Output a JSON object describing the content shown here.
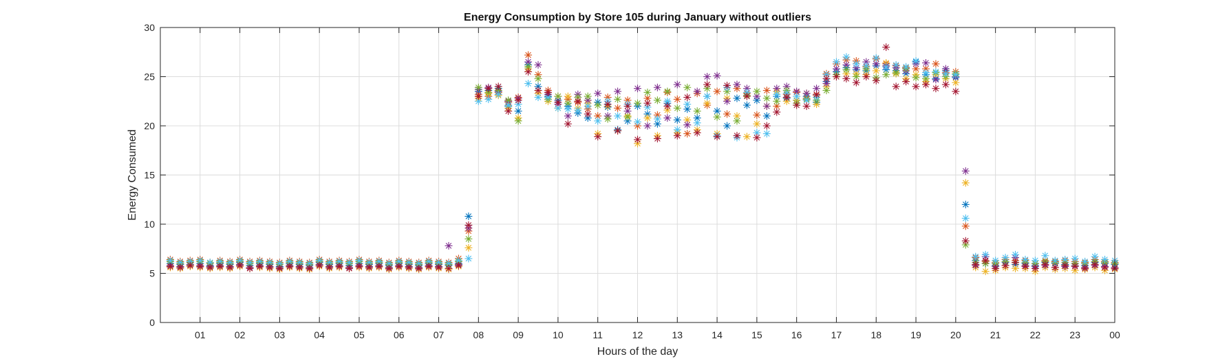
{
  "chart_data": {
    "type": "scatter",
    "title": "Energy Consumption by Store 105 during January without outliers",
    "xlabel": "Hours of the day",
    "ylabel": "Energy Consumed",
    "xlim": [
      0,
      96
    ],
    "ylim": [
      0,
      30
    ],
    "xticks": [
      {
        "value": 4,
        "label": "01"
      },
      {
        "value": 8,
        "label": "02"
      },
      {
        "value": 12,
        "label": "03"
      },
      {
        "value": 16,
        "label": "04"
      },
      {
        "value": 20,
        "label": "05"
      },
      {
        "value": 24,
        "label": "06"
      },
      {
        "value": 28,
        "label": "07"
      },
      {
        "value": 32,
        "label": "08"
      },
      {
        "value": 36,
        "label": "09"
      },
      {
        "value": 40,
        "label": "10"
      },
      {
        "value": 44,
        "label": "11"
      },
      {
        "value": 48,
        "label": "12"
      },
      {
        "value": 52,
        "label": "13"
      },
      {
        "value": 56,
        "label": "14"
      },
      {
        "value": 60,
        "label": "15"
      },
      {
        "value": 64,
        "label": "16"
      },
      {
        "value": 68,
        "label": "17"
      },
      {
        "value": 72,
        "label": "18"
      },
      {
        "value": 76,
        "label": "19"
      },
      {
        "value": 80,
        "label": "20"
      },
      {
        "value": 84,
        "label": "21"
      },
      {
        "value": 88,
        "label": "22"
      },
      {
        "value": 92,
        "label": "23"
      },
      {
        "value": 96,
        "label": "00"
      }
    ],
    "yticks": [
      {
        "value": 0,
        "label": "0"
      },
      {
        "value": 5,
        "label": "5"
      },
      {
        "value": 10,
        "label": "10"
      },
      {
        "value": 15,
        "label": "15"
      },
      {
        "value": 20,
        "label": "20"
      },
      {
        "value": 25,
        "label": "25"
      },
      {
        "value": 30,
        "label": "30"
      }
    ],
    "grid": true,
    "marker": "asterisk",
    "series_colors": [
      "#0072BD",
      "#D95319",
      "#EDB120",
      "#7E2F8E",
      "#77AC30",
      "#4DBEEE",
      "#A2142F"
    ],
    "x": [
      1,
      2,
      3,
      4,
      5,
      6,
      7,
      8,
      9,
      10,
      11,
      12,
      13,
      14,
      15,
      16,
      17,
      18,
      19,
      20,
      21,
      22,
      23,
      24,
      25,
      26,
      27,
      28,
      29,
      30,
      31,
      32,
      33,
      34,
      35,
      36,
      37,
      38,
      39,
      40,
      41,
      42,
      43,
      44,
      45,
      46,
      47,
      48,
      49,
      50,
      51,
      52,
      53,
      54,
      55,
      56,
      57,
      58,
      59,
      60,
      61,
      62,
      63,
      64,
      65,
      66,
      67,
      68,
      69,
      70,
      71,
      72,
      73,
      74,
      75,
      76,
      77,
      78,
      79,
      80,
      81,
      82,
      83,
      84,
      85,
      86,
      87,
      88,
      89,
      90,
      91,
      92,
      93,
      94,
      95,
      96
    ],
    "series": [
      {
        "values": [
          6.0,
          5.9,
          6.1,
          6.0,
          5.8,
          6.0,
          5.9,
          6.1,
          5.8,
          6.0,
          5.9,
          5.7,
          6.0,
          5.9,
          5.8,
          6.1,
          5.9,
          6.0,
          5.8,
          6.0,
          5.9,
          6.0,
          5.8,
          6.0,
          5.9,
          5.8,
          6.0,
          5.9,
          5.8,
          6.0,
          10.8,
          23.5,
          23.6,
          23.8,
          22.0,
          21.5,
          26.2,
          24.0,
          23.0,
          22.6,
          22.0,
          21.3,
          20.8,
          22.4,
          21.9,
          19.6,
          20.5,
          22.0,
          21.2,
          20.2,
          22.3,
          20.6,
          21.7,
          20.8,
          23.0,
          21.5,
          20.0,
          22.8,
          22.1,
          22.6,
          21.0,
          23.0,
          22.8,
          22.6,
          23.0,
          22.4,
          24.5,
          25.5,
          25.9,
          25.7,
          25.6,
          26.1,
          25.7,
          25.6,
          25.3,
          26.5,
          25.2,
          24.8,
          25.6,
          24.9,
          12.0,
          6.3,
          6.0,
          5.8,
          6.1,
          5.9,
          6.0,
          5.8,
          6.1,
          6.0,
          5.9,
          6.0,
          5.8,
          6.1,
          6.0,
          5.9
        ]
      },
      {
        "values": [
          6.4,
          6.2,
          6.3,
          6.4,
          6.1,
          6.3,
          6.2,
          6.4,
          6.2,
          6.3,
          6.2,
          6.1,
          6.3,
          6.2,
          6.1,
          6.4,
          6.2,
          6.3,
          6.2,
          6.4,
          6.2,
          6.3,
          6.1,
          6.3,
          6.2,
          6.1,
          6.3,
          6.2,
          6.1,
          6.5,
          9.3,
          23.2,
          23.0,
          23.4,
          22.4,
          22.9,
          27.2,
          25.2,
          23.6,
          23.0,
          22.7,
          22.4,
          21.7,
          21.0,
          22.9,
          21.8,
          22.6,
          20.0,
          22.8,
          21.1,
          23.4,
          22.7,
          19.2,
          23.3,
          22.1,
          23.5,
          21.2,
          23.8,
          23.3,
          21.1,
          23.6,
          22.0,
          23.2,
          23.4,
          22.8,
          23.1,
          25.3,
          26.3,
          26.7,
          26.6,
          26.0,
          26.8,
          26.3,
          26.1,
          25.9,
          25.8,
          25.8,
          26.3,
          25.4,
          25.5,
          9.8,
          6.6,
          6.2,
          6.1,
          6.4,
          6.3,
          6.3,
          6.0,
          6.3,
          6.2,
          6.3,
          6.2,
          6.1,
          6.4,
          6.2,
          6.1
        ]
      },
      {
        "values": [
          5.6,
          5.5,
          5.7,
          5.6,
          5.5,
          5.6,
          5.5,
          5.7,
          5.5,
          5.6,
          5.5,
          5.4,
          5.6,
          5.5,
          5.4,
          5.7,
          5.5,
          5.6,
          5.5,
          5.6,
          5.5,
          5.6,
          5.4,
          5.6,
          5.5,
          5.4,
          5.6,
          5.5,
          5.4,
          5.7,
          7.6,
          22.8,
          23.3,
          23.1,
          21.8,
          20.8,
          25.8,
          23.3,
          22.5,
          21.8,
          23.0,
          21.8,
          22.3,
          19.2,
          22.0,
          19.5,
          21.0,
          18.2,
          20.8,
          19.0,
          21.6,
          19.3,
          20.6,
          19.6,
          22.3,
          19.2,
          22.8,
          21.0,
          18.9,
          20.2,
          22.0,
          23.5,
          22.5,
          22.6,
          23.3,
          22.2,
          24.0,
          25.0,
          25.3,
          25.3,
          25.2,
          25.6,
          26.4,
          25.3,
          24.8,
          25.2,
          24.5,
          25.2,
          24.8,
          24.4,
          14.2,
          5.6,
          5.2,
          5.3,
          5.6,
          5.5,
          5.5,
          5.2,
          5.6,
          5.4,
          5.5,
          5.3,
          5.4,
          5.6,
          5.3,
          5.4
        ]
      },
      {
        "values": [
          5.8,
          5.7,
          5.9,
          5.8,
          5.7,
          5.8,
          5.7,
          5.9,
          5.6,
          5.8,
          5.7,
          5.6,
          5.8,
          5.7,
          5.6,
          5.9,
          5.7,
          5.8,
          5.6,
          5.8,
          5.7,
          5.8,
          5.6,
          5.8,
          5.7,
          5.6,
          5.8,
          5.7,
          7.8,
          5.9,
          9.6,
          23.7,
          23.9,
          23.5,
          22.5,
          22.8,
          26.5,
          26.2,
          23.2,
          22.2,
          21.0,
          23.2,
          22.6,
          23.3,
          21.0,
          23.5,
          21.5,
          23.8,
          20.0,
          23.9,
          20.8,
          24.2,
          20.1,
          23.5,
          25.0,
          25.1,
          22.5,
          24.2,
          23.8,
          23.0,
          22.0,
          23.8,
          24.0,
          23.5,
          23.3,
          23.8,
          24.3,
          25.8,
          26.2,
          25.9,
          26.5,
          26.3,
          26.1,
          25.9,
          25.6,
          26.3,
          26.4,
          24.7,
          25.8,
          25.0,
          15.4,
          5.8,
          6.7,
          5.7,
          5.8,
          6.6,
          5.8,
          5.7,
          5.8,
          5.6,
          5.7,
          5.8,
          5.6,
          5.8,
          5.7,
          5.6
        ]
      },
      {
        "values": [
          6.2,
          6.0,
          6.1,
          6.2,
          6.0,
          6.1,
          6.0,
          6.2,
          6.0,
          6.1,
          6.0,
          5.9,
          6.1,
          6.0,
          5.9,
          6.2,
          6.0,
          6.1,
          6.0,
          6.2,
          6.0,
          6.1,
          5.9,
          6.1,
          6.0,
          5.9,
          6.1,
          6.0,
          5.9,
          6.2,
          8.5,
          23.9,
          23.4,
          23.6,
          22.6,
          20.5,
          26.0,
          24.8,
          22.7,
          23.0,
          22.3,
          22.9,
          23.0,
          22.1,
          20.7,
          22.7,
          20.9,
          22.3,
          23.4,
          22.6,
          23.5,
          21.8,
          23.9,
          21.5,
          23.8,
          20.9,
          23.5,
          20.5,
          23.1,
          23.5,
          22.8,
          22.5,
          23.6,
          22.3,
          22.7,
          22.6,
          23.6,
          25.2,
          25.7,
          25.0,
          25.8,
          24.9,
          25.2,
          25.4,
          25.8,
          24.9,
          24.8,
          25.4,
          25.0,
          25.3,
          7.9,
          6.1,
          6.0,
          6.0,
          6.2,
          6.1,
          6.1,
          6.0,
          6.2,
          6.1,
          6.1,
          6.0,
          6.0,
          6.2,
          6.1,
          6.0
        ]
      },
      {
        "values": [
          6.3,
          6.1,
          6.2,
          6.3,
          6.1,
          6.2,
          6.1,
          6.3,
          6.1,
          6.2,
          6.1,
          6.0,
          6.2,
          6.1,
          6.0,
          6.3,
          6.1,
          6.2,
          6.1,
          6.3,
          6.1,
          6.2,
          6.0,
          6.2,
          6.1,
          6.0,
          6.2,
          6.1,
          6.0,
          6.3,
          6.5,
          22.5,
          22.7,
          23.2,
          22.1,
          22.2,
          24.3,
          22.9,
          22.9,
          21.8,
          21.7,
          21.6,
          22.0,
          20.5,
          22.5,
          21.0,
          22.2,
          20.4,
          21.9,
          20.7,
          22.5,
          19.6,
          22.2,
          20.3,
          23.0,
          19.0,
          23.9,
          18.8,
          23.4,
          19.3,
          19.2,
          23.2,
          23.3,
          23.0,
          22.6,
          22.9,
          25.2,
          26.5,
          27.0,
          26.3,
          26.1,
          26.9,
          26.0,
          26.2,
          26.0,
          26.6,
          25.4,
          25.5,
          25.3,
          25.2,
          10.6,
          6.7,
          6.9,
          6.3,
          6.6,
          6.9,
          6.4,
          6.3,
          6.8,
          6.3,
          6.4,
          6.5,
          6.2,
          6.7,
          6.4,
          6.3
        ]
      },
      {
        "values": [
          5.7,
          5.6,
          5.8,
          5.7,
          5.6,
          5.7,
          5.6,
          5.8,
          5.5,
          5.7,
          5.6,
          5.5,
          5.7,
          5.6,
          5.5,
          5.8,
          5.6,
          5.7,
          5.5,
          5.7,
          5.6,
          5.7,
          5.5,
          5.7,
          5.6,
          5.5,
          5.7,
          5.6,
          5.5,
          5.8,
          9.9,
          23.0,
          23.8,
          24.0,
          21.5,
          22.6,
          25.5,
          23.6,
          23.4,
          22.4,
          20.2,
          22.5,
          21.2,
          18.9,
          22.2,
          19.5,
          22.0,
          18.6,
          22.3,
          18.7,
          22.0,
          19.0,
          22.9,
          19.3,
          24.2,
          18.9,
          24.1,
          19.0,
          23.0,
          18.8,
          20.0,
          21.4,
          22.9,
          22.1,
          22.0,
          23.2,
          24.8,
          25.0,
          24.8,
          24.4,
          25.0,
          24.6,
          28.0,
          24.0,
          24.5,
          24.0,
          24.2,
          23.8,
          24.2,
          23.5,
          8.3,
          5.9,
          6.3,
          5.5,
          5.8,
          6.1,
          5.7,
          5.5,
          5.9,
          5.6,
          5.8,
          5.7,
          5.5,
          5.9,
          5.6,
          5.5
        ]
      }
    ]
  }
}
